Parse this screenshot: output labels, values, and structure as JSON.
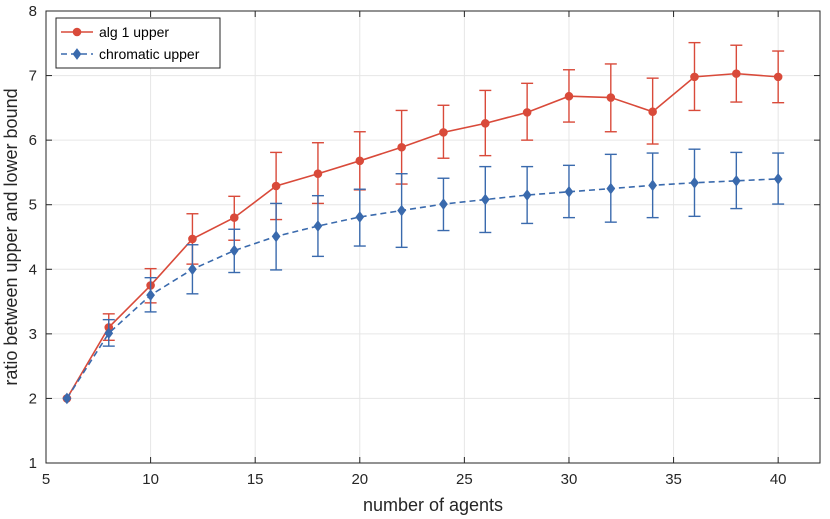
{
  "chart_data": {
    "type": "line",
    "title": "",
    "xlabel": "number of agents",
    "ylabel": "ratio between upper and lower bound",
    "xlim": [
      5,
      42
    ],
    "ylim": [
      1,
      8
    ],
    "xticks": [
      5,
      10,
      15,
      20,
      25,
      30,
      35,
      40
    ],
    "yticks": [
      1,
      2,
      3,
      4,
      5,
      6,
      7,
      8
    ],
    "grid": true,
    "legend_position": "top-left",
    "series": [
      {
        "name": "alg 1 upper",
        "color": "#d94a3a",
        "marker": "circle",
        "line_style": "solid",
        "x": [
          6,
          8,
          10,
          12,
          14,
          16,
          18,
          20,
          22,
          24,
          26,
          28,
          30,
          32,
          34,
          36,
          38,
          40
        ],
        "y": [
          2.0,
          3.1,
          3.75,
          4.47,
          4.8,
          5.29,
          5.48,
          5.68,
          5.89,
          6.12,
          6.26,
          6.43,
          6.68,
          6.66,
          6.44,
          6.98,
          7.03,
          6.98
        ],
        "err_low": [
          2.0,
          2.9,
          3.48,
          4.08,
          4.45,
          4.77,
          5.02,
          5.23,
          5.32,
          5.72,
          5.76,
          6.0,
          6.28,
          6.13,
          5.94,
          6.46,
          6.59,
          6.58
        ],
        "err_high": [
          2.0,
          3.31,
          4.01,
          4.86,
          5.13,
          5.81,
          5.96,
          6.13,
          6.46,
          6.54,
          6.77,
          6.88,
          7.09,
          7.18,
          6.96,
          7.51,
          7.47,
          7.38
        ]
      },
      {
        "name": "chromatic upper",
        "color": "#3a6aad",
        "marker": "diamond",
        "line_style": "dashed",
        "x": [
          6,
          8,
          10,
          12,
          14,
          16,
          18,
          20,
          22,
          24,
          26,
          28,
          30,
          32,
          34,
          36,
          38,
          40
        ],
        "y": [
          2.0,
          3.01,
          3.6,
          4.0,
          4.29,
          4.51,
          4.67,
          4.81,
          4.91,
          5.01,
          5.08,
          5.15,
          5.2,
          5.25,
          5.3,
          5.34,
          5.37,
          5.4
        ],
        "err_low": [
          2.0,
          2.81,
          3.34,
          3.62,
          3.95,
          3.99,
          4.2,
          4.36,
          4.34,
          4.6,
          4.57,
          4.71,
          4.8,
          4.73,
          4.8,
          4.82,
          4.94,
          5.01
        ],
        "err_high": [
          2.0,
          3.22,
          3.87,
          4.38,
          4.62,
          5.02,
          5.14,
          5.24,
          5.48,
          5.41,
          5.59,
          5.59,
          5.61,
          5.78,
          5.8,
          5.86,
          5.81,
          5.8
        ]
      }
    ]
  }
}
